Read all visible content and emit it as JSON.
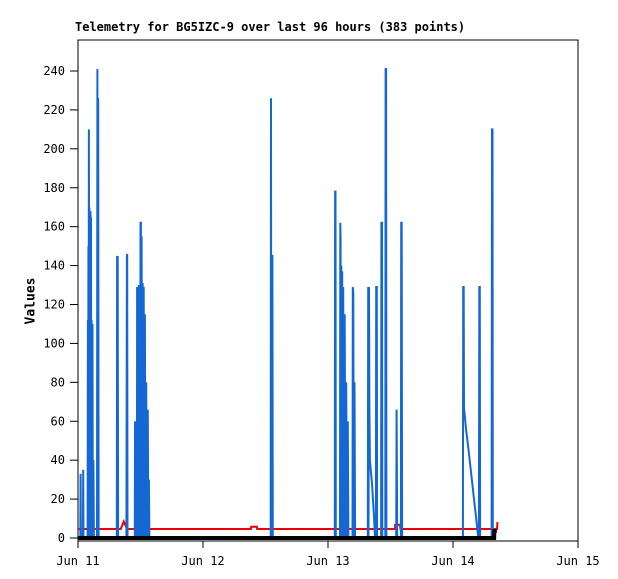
{
  "page": {
    "background": "#ffffff"
  },
  "chart_data": {
    "type": "line",
    "title": "Telemetry for BG5IZC-9 over last 96 hours (383 points)",
    "ylabel": "Values",
    "xlabel": "",
    "grid": false,
    "legend": null,
    "frame_color": "#000000",
    "plot_bg": "#ffffff",
    "ylim": [
      0,
      256
    ],
    "yticks": [
      0,
      20,
      40,
      60,
      80,
      100,
      120,
      140,
      160,
      180,
      200,
      220,
      240
    ],
    "x_unit": "hours since Jun 11 00:00",
    "xlim": [
      0,
      96
    ],
    "xticks": [
      {
        "t": 0,
        "label": "Jun 11"
      },
      {
        "t": 24,
        "label": "Jun 12"
      },
      {
        "t": 48,
        "label": "Jun 13"
      },
      {
        "t": 72,
        "label": "Jun 14"
      },
      {
        "t": 96,
        "label": "Jun 15"
      }
    ],
    "series": [
      {
        "name": "threshold-red-line",
        "color": "#ee0000",
        "width": 2,
        "points": [
          [
            0,
            4.6
          ],
          [
            8.2,
            4.6
          ],
          [
            8.8,
            8.5
          ],
          [
            9.4,
            4.6
          ],
          [
            33.2,
            4.6
          ],
          [
            33.26,
            5.8
          ],
          [
            34.35,
            5.8
          ],
          [
            34.4,
            4.6
          ],
          [
            60.85,
            4.6
          ],
          [
            60.9,
            6.8
          ],
          [
            61.85,
            6.8
          ],
          [
            61.9,
            4.6
          ],
          [
            80.45,
            4.6
          ],
          [
            80.55,
            8.2
          ]
        ]
      },
      {
        "name": "telemetry-values-blue",
        "color": "#1568d4",
        "width": 2,
        "points": [
          [
            0,
            0
          ],
          [
            0.45,
            0
          ],
          [
            0.5,
            33
          ],
          [
            0.55,
            0
          ],
          [
            0.95,
            0
          ],
          [
            1.0,
            35
          ],
          [
            1.05,
            0
          ],
          [
            1.85,
            0
          ],
          [
            1.9,
            112
          ],
          [
            1.95,
            0
          ],
          [
            2.0,
            150
          ],
          [
            2.02,
            0
          ],
          [
            2.1,
            210
          ],
          [
            2.15,
            0
          ],
          [
            2.18,
            170
          ],
          [
            2.22,
            0
          ],
          [
            2.3,
            168
          ],
          [
            2.32,
            0
          ],
          [
            2.4,
            168
          ],
          [
            2.42,
            0
          ],
          [
            2.5,
            165
          ],
          [
            2.55,
            0
          ],
          [
            2.62,
            112
          ],
          [
            2.7,
            0
          ],
          [
            2.78,
            110
          ],
          [
            2.85,
            0
          ],
          [
            2.95,
            40
          ],
          [
            3.05,
            0
          ],
          [
            3.65,
            0
          ],
          [
            3.72,
            241
          ],
          [
            3.78,
            0
          ],
          [
            3.82,
            226
          ],
          [
            3.88,
            225
          ],
          [
            3.95,
            0
          ],
          [
            7.45,
            0
          ],
          [
            7.5,
            145
          ],
          [
            7.55,
            0
          ],
          [
            7.62,
            145
          ],
          [
            7.7,
            0
          ],
          [
            9.3,
            0
          ],
          [
            9.38,
            145
          ],
          [
            9.45,
            146
          ],
          [
            9.5,
            0
          ],
          [
            10.9,
            0
          ],
          [
            10.95,
            60
          ],
          [
            11.0,
            0
          ],
          [
            11.3,
            0
          ],
          [
            11.35,
            129
          ],
          [
            11.42,
            0
          ],
          [
            11.6,
            0
          ],
          [
            11.68,
            130
          ],
          [
            11.75,
            0
          ],
          [
            11.95,
            0
          ],
          [
            12.0,
            162
          ],
          [
            12.08,
            162
          ],
          [
            12.15,
            0
          ],
          [
            12.22,
            155
          ],
          [
            12.3,
            0
          ],
          [
            12.42,
            131
          ],
          [
            12.5,
            0
          ],
          [
            12.62,
            129
          ],
          [
            12.72,
            0
          ],
          [
            12.85,
            115
          ],
          [
            12.95,
            0
          ],
          [
            13.1,
            80
          ],
          [
            13.25,
            0
          ],
          [
            13.4,
            66
          ],
          [
            13.5,
            0
          ],
          [
            13.62,
            30
          ],
          [
            13.7,
            0
          ],
          [
            37.0,
            0
          ],
          [
            37.06,
            226
          ],
          [
            37.12,
            0
          ],
          [
            37.18,
            145
          ],
          [
            37.32,
            145
          ],
          [
            37.4,
            0
          ],
          [
            49.3,
            0
          ],
          [
            49.36,
            178
          ],
          [
            49.44,
            178
          ],
          [
            49.5,
            0
          ],
          [
            50.3,
            0
          ],
          [
            50.36,
            162
          ],
          [
            50.42,
            153
          ],
          [
            50.48,
            0
          ],
          [
            50.56,
            140
          ],
          [
            50.64,
            0
          ],
          [
            50.72,
            137
          ],
          [
            50.8,
            0
          ],
          [
            50.92,
            129
          ],
          [
            51.05,
            0
          ],
          [
            51.2,
            115
          ],
          [
            51.35,
            0
          ],
          [
            51.5,
            80
          ],
          [
            51.65,
            0
          ],
          [
            51.8,
            60
          ],
          [
            51.92,
            0
          ],
          [
            52.7,
            0
          ],
          [
            52.76,
            129
          ],
          [
            52.86,
            126
          ],
          [
            52.95,
            0
          ],
          [
            53.08,
            80
          ],
          [
            53.2,
            0
          ],
          [
            55.65,
            0
          ],
          [
            55.72,
            129
          ],
          [
            55.78,
            0
          ],
          [
            55.88,
            129
          ],
          [
            55.95,
            67
          ],
          [
            56.05,
            40
          ],
          [
            56.45,
            28
          ],
          [
            56.85,
            10
          ],
          [
            57.02,
            0
          ],
          [
            57.2,
            0
          ],
          [
            57.26,
            129
          ],
          [
            57.36,
            129
          ],
          [
            57.42,
            0
          ],
          [
            58.2,
            0
          ],
          [
            58.26,
            162
          ],
          [
            58.36,
            162
          ],
          [
            58.42,
            0
          ],
          [
            59.0,
            0
          ],
          [
            59.06,
            241
          ],
          [
            59.16,
            241
          ],
          [
            59.22,
            0
          ],
          [
            61.1,
            0
          ],
          [
            61.18,
            66
          ],
          [
            61.28,
            0
          ],
          [
            62.0,
            0
          ],
          [
            62.06,
            162
          ],
          [
            62.16,
            162
          ],
          [
            62.22,
            0
          ],
          [
            73.9,
            0
          ],
          [
            73.96,
            129
          ],
          [
            74.06,
            129
          ],
          [
            74.12,
            67
          ],
          [
            74.5,
            56
          ],
          [
            75.0,
            45
          ],
          [
            75.5,
            33
          ],
          [
            76.0,
            21
          ],
          [
            76.5,
            9
          ],
          [
            76.85,
            0
          ],
          [
            76.98,
            0
          ],
          [
            77.04,
            129
          ],
          [
            77.14,
            129
          ],
          [
            77.2,
            0
          ],
          [
            79.42,
            0
          ],
          [
            79.48,
            210
          ],
          [
            79.58,
            210
          ],
          [
            79.65,
            0
          ],
          [
            80.3,
            0
          ]
        ]
      },
      {
        "name": "baseline-black-line",
        "color": "#000000",
        "width": 4,
        "points": [
          [
            0,
            0
          ],
          [
            79.9,
            0
          ],
          [
            79.95,
            3.6
          ],
          [
            80.4,
            3.6
          ]
        ]
      }
    ]
  }
}
